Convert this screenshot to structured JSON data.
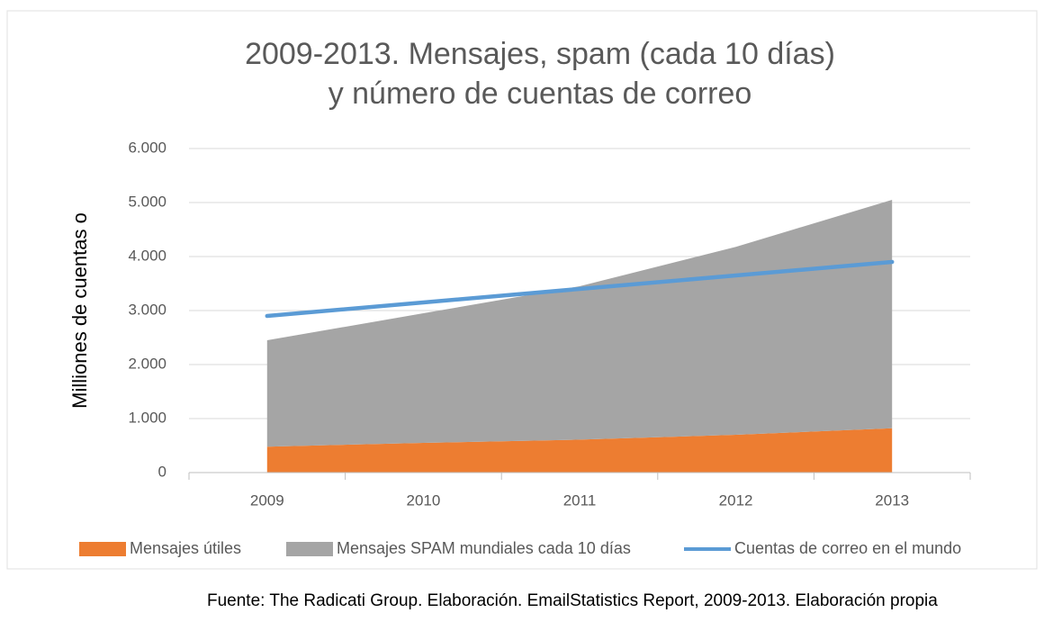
{
  "chart_data": {
    "type": "area",
    "title": [
      "2009-2013. Mensajes, spam (cada 10 días)",
      "y número de cuentas de correo"
    ],
    "y_label": "Milliones de cuentas o",
    "categories": [
      "2009",
      "2010",
      "2011",
      "2012",
      "2013"
    ],
    "series": [
      {
        "name": "Mensajes útiles",
        "color": "#ed7d31",
        "type": "area",
        "values": [
          480,
          550,
          610,
          700,
          820
        ]
      },
      {
        "name": "Mensajes SPAM mundiales cada 10 días",
        "color": "#a5a5a5",
        "type": "area",
        "values": [
          1970,
          2400,
          2840,
          3480,
          4230
        ]
      },
      {
        "name": "Cuentas de correo en el mundo",
        "color": "#5b9bd5",
        "type": "line",
        "values": [
          2900,
          3150,
          3400,
          3650,
          3900
        ]
      }
    ],
    "ylim": [
      0,
      6000
    ],
    "yticks": [
      0,
      {
        "value": 1000,
        "label": "1.000"
      },
      {
        "value": 2000,
        "label": "2.000"
      },
      {
        "value": 3000,
        "label": "3.000"
      },
      {
        "value": 4000,
        "label": "4.000"
      },
      {
        "value": 5000,
        "label": "5.000"
      },
      {
        "value": 6000,
        "label": "6.000"
      }
    ],
    "grid": true,
    "legend": "bottom",
    "source": "Fuente:  The Radicati Group. Elaboración. EmailStatistics Report, 2009-2013. Elaboración propia"
  }
}
